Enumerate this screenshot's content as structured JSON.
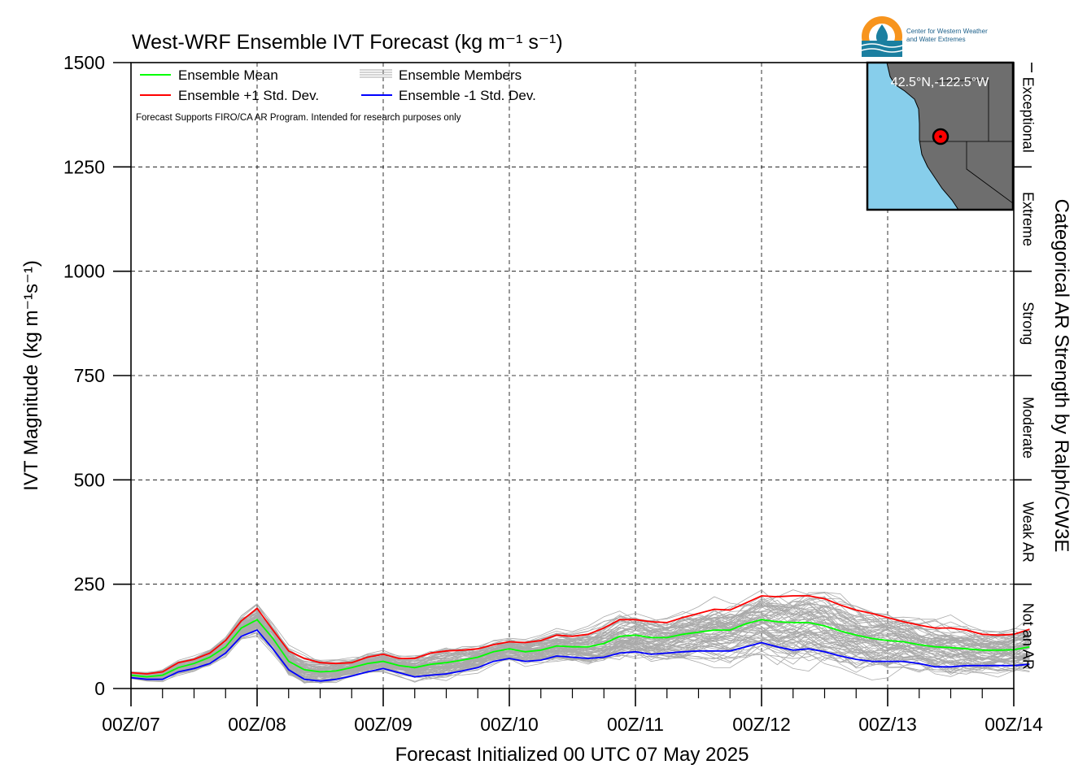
{
  "chart_data": {
    "type": "line",
    "title": "West-WRF Ensemble IVT Forecast (kg m⁻¹ s⁻¹)",
    "xlabel": "Forecast Initialized 00 UTC 07 May 2025",
    "ylabel": "IVT Magnitude (kg m⁻¹s⁻¹)",
    "right_label": "Categorical AR Strength by Ralph/CW3E",
    "ylim": [
      0,
      1500
    ],
    "xlim_days": [
      0,
      7
    ],
    "yticks": [
      0,
      250,
      500,
      750,
      1000,
      1250,
      1500
    ],
    "xtick_labels": [
      "00Z/07",
      "00Z/08",
      "00Z/09",
      "00Z/10",
      "00Z/11",
      "00Z/12",
      "00Z/13",
      "00Z/14"
    ],
    "grid": true,
    "categories_right": [
      "Not an AR",
      "Weak AR",
      "Moderate",
      "Strong",
      "Extreme",
      "Exceptional"
    ],
    "legend": {
      "placement": "top-left",
      "entries": [
        {
          "label": "Ensemble Mean",
          "color": "#00ff00"
        },
        {
          "label": "Ensemble Members",
          "color": "#aaaaaa"
        },
        {
          "label": "Ensemble +1 Std. Dev.",
          "color": "#ff0000"
        },
        {
          "label": "Ensemble -1 Std. Dev.",
          "color": "#0000ff"
        }
      ]
    },
    "note": "Forecast Supports FIRO/CA AR Program. Intended for research purposes only",
    "inset": {
      "label": "42.5°N,-122.5°W",
      "lat": 42.5,
      "lon": -122.5
    },
    "logo": {
      "line1": "Center for Western Weather",
      "line2": "and Water Extremes"
    },
    "x_step_hours": 3,
    "series": [
      {
        "name": "Ensemble Mean",
        "color": "#00ff00",
        "values": [
          32,
          28,
          32,
          50,
          60,
          75,
          100,
          145,
          165,
          120,
          65,
          45,
          40,
          42,
          50,
          60,
          65,
          55,
          50,
          58,
          62,
          68,
          75,
          88,
          95,
          88,
          92,
          102,
          100,
          100,
          108,
          125,
          128,
          122,
          122,
          130,
          135,
          140,
          140,
          155,
          165,
          160,
          158,
          158,
          150,
          138,
          128,
          120,
          115,
          112,
          105,
          100,
          98,
          95,
          92,
          92,
          93,
          100
        ]
      },
      {
        "name": "Ensemble +1 Std. Dev.",
        "color": "#ff0000",
        "values": [
          38,
          35,
          40,
          62,
          70,
          85,
          115,
          162,
          192,
          140,
          90,
          72,
          62,
          60,
          62,
          75,
          82,
          72,
          72,
          85,
          90,
          92,
          95,
          105,
          112,
          110,
          115,
          128,
          125,
          130,
          145,
          165,
          165,
          160,
          158,
          170,
          180,
          190,
          188,
          205,
          222,
          220,
          222,
          222,
          215,
          200,
          188,
          180,
          170,
          160,
          152,
          145,
          145,
          140,
          130,
          128,
          130,
          142
        ]
      },
      {
        "name": "Ensemble -1 Std. Dev.",
        "color": "#0000ff",
        "values": [
          26,
          22,
          22,
          40,
          48,
          60,
          85,
          125,
          140,
          95,
          45,
          22,
          18,
          22,
          30,
          40,
          48,
          38,
          28,
          32,
          35,
          42,
          50,
          65,
          72,
          65,
          68,
          78,
          75,
          72,
          75,
          85,
          88,
          82,
          85,
          88,
          90,
          90,
          90,
          100,
          110,
          100,
          92,
          95,
          88,
          78,
          70,
          65,
          65,
          65,
          60,
          52,
          52,
          55,
          55,
          55,
          55,
          58
        ]
      }
    ]
  }
}
